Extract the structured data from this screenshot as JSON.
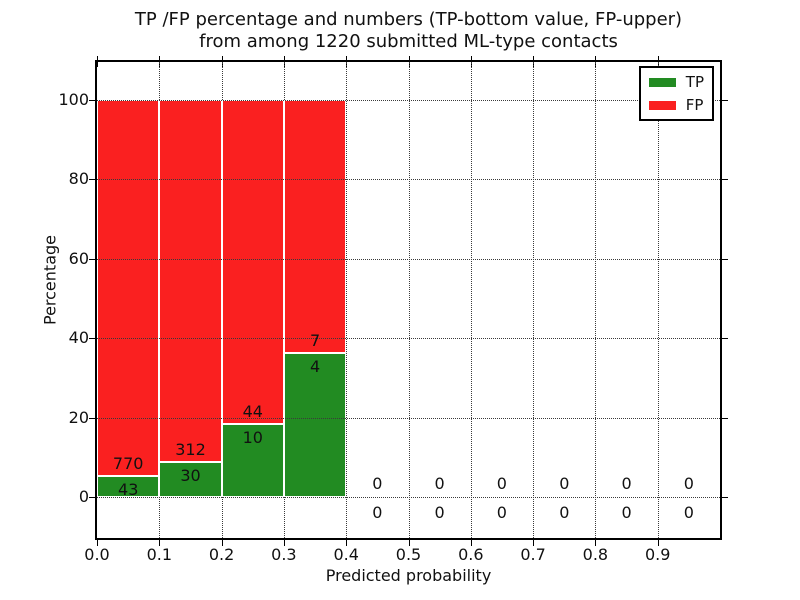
{
  "chart_data": {
    "type": "bar",
    "stacked": true,
    "percent_normalized": true,
    "title_line1": "TP /FP percentage and numbers (TP-bottom value, FP-upper)",
    "title_line2": "from among 1220 submitted ML-type contacts",
    "xlabel": "Predicted probability",
    "ylabel": "Percentage",
    "total_submitted_contacts": 1220,
    "xlim": [
      0.0,
      1.0
    ],
    "ylim": [
      0,
      100
    ],
    "grid": "dotted",
    "bin_left_edges": [
      0.0,
      0.1,
      0.2,
      0.3,
      0.4,
      0.5,
      0.6,
      0.7,
      0.8,
      0.9
    ],
    "bin_width": 0.1,
    "x_tick_labels": [
      "0.0",
      "0.1",
      "0.2",
      "0.3",
      "0.4",
      "0.5",
      "0.6",
      "0.7",
      "0.8",
      "0.9"
    ],
    "y_tick_values": [
      0,
      20,
      40,
      60,
      80,
      100
    ],
    "y_tick_labels": [
      "0",
      "20",
      "40",
      "60",
      "80",
      "100"
    ],
    "series": [
      {
        "name": "TP",
        "color": "#228b22",
        "counts": [
          43,
          30,
          10,
          4,
          0,
          0,
          0,
          0,
          0,
          0
        ]
      },
      {
        "name": "FP",
        "color": "#fa2020",
        "counts": [
          770,
          312,
          44,
          7,
          0,
          0,
          0,
          0,
          0,
          0
        ]
      }
    ],
    "tp_percent_of_bin_total": [
      5.3,
      8.8,
      18.5,
      36.4,
      0,
      0,
      0,
      0,
      0,
      0
    ],
    "legend": {
      "position": "upper right",
      "entries": [
        "TP",
        "FP"
      ]
    }
  }
}
